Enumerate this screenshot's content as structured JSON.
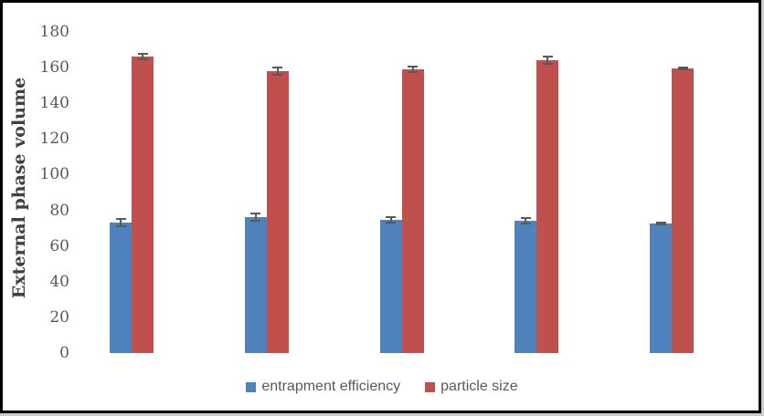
{
  "figure": {
    "background": "#ffffff",
    "frame_border_color": "#000000",
    "outer_edge_color": "#cccccc"
  },
  "chart_data": {
    "type": "bar",
    "title": "",
    "xlabel": "",
    "ylabel": "External phase volume",
    "categories": [
      "",
      "",
      "",
      "",
      ""
    ],
    "series": [
      {
        "name": "entrapment efficiency",
        "color": "#4f81bd",
        "values": [
          73,
          76,
          74.5,
          74,
          72.5
        ],
        "errors": [
          2,
          2,
          1.5,
          1.5,
          0.5
        ]
      },
      {
        "name": "particle size",
        "color": "#c0504d",
        "values": [
          166,
          158,
          159,
          164,
          159.5
        ],
        "errors": [
          1.5,
          2,
          1.5,
          2,
          0.5
        ]
      }
    ],
    "ylim": [
      0,
      180
    ],
    "yticks": [
      0,
      20,
      40,
      60,
      80,
      100,
      120,
      140,
      160,
      180
    ],
    "grid": false,
    "axis_lines": false,
    "legend_position": "bottom",
    "error_bar_color": "#595959",
    "tick_text_color": "#595959",
    "axis_title_color": "#404040",
    "legend_text_color": "#595959"
  }
}
